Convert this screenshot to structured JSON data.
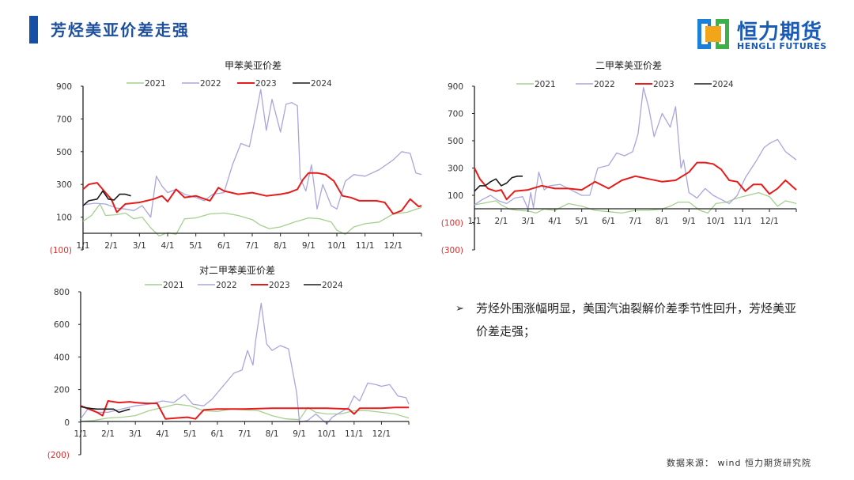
{
  "header": {
    "title": "芳烃美亚价差走强",
    "accent_color": "#1650a6"
  },
  "logo": {
    "name_cn": "恒力期货",
    "name_en": "HENGLI FUTURES"
  },
  "bullet": {
    "marker": "➢",
    "text": "芳烃外围涨幅明显，美国汽油裂解价差季节性回升，芳烃美亚价差走强；"
  },
  "source": {
    "label": "数据来源：",
    "value": "wind 恒力期货研究院"
  },
  "series_colors": {
    "2021": "#a6cf8f",
    "2022": "#a9a6dc",
    "2023": "#e51c1c",
    "2024": "#1a1a1a"
  },
  "chart_data": [
    {
      "id": "toluene",
      "type": "line",
      "title": "甲苯美亚价差",
      "xlabel": "",
      "ylabel": "",
      "categories": [
        "1/1",
        "2/1",
        "3/1",
        "4/1",
        "5/1",
        "6/1",
        "7/1",
        "8/1",
        "9/1",
        "10/1",
        "11/1",
        "12/1"
      ],
      "y_ticks": [
        "900",
        "700",
        "500",
        "300",
        "100",
        "(100)"
      ],
      "ylim": [
        -100,
        900
      ],
      "legend": [
        "2021",
        "2022",
        "2023",
        "2024"
      ],
      "legend_position": "top",
      "grid": false,
      "x_unit": "month index (0 = 1/1, 12 = year end)",
      "series": [
        {
          "name": "2021",
          "x": [
            0,
            0.3,
            0.6,
            0.8,
            1.2,
            1.5,
            1.8,
            2.1,
            2.4,
            2.7,
            3.0,
            3.3,
            3.6,
            4.0,
            4.5,
            5.0,
            5.5,
            6.0,
            6.3,
            6.6,
            7.0,
            7.5,
            8.0,
            8.4,
            8.8,
            9.0,
            9.3,
            9.6,
            10.0,
            10.5,
            11.0,
            11.5,
            12.0
          ],
          "values": [
            75,
            110,
            180,
            110,
            115,
            125,
            90,
            100,
            35,
            -15,
            5,
            -5,
            90,
            95,
            120,
            125,
            110,
            85,
            50,
            30,
            40,
            70,
            95,
            90,
            70,
            20,
            -5,
            40,
            60,
            70,
            120,
            130,
            160
          ]
        },
        {
          "name": "2022",
          "x": [
            0,
            0.4,
            0.8,
            1.2,
            1.5,
            1.8,
            2.1,
            2.4,
            2.6,
            2.8,
            3.0,
            3.3,
            3.6,
            4.0,
            4.3,
            4.6,
            5.0,
            5.3,
            5.6,
            5.9,
            6.1,
            6.3,
            6.5,
            6.7,
            7.0,
            7.2,
            7.4,
            7.6,
            7.7,
            7.9,
            8.1,
            8.3,
            8.5,
            8.8,
            9.0,
            9.3,
            9.6,
            10.0,
            10.5,
            11.0,
            11.3,
            11.6,
            11.8,
            12.0
          ],
          "values": [
            175,
            185,
            180,
            155,
            150,
            140,
            170,
            100,
            350,
            290,
            250,
            270,
            240,
            220,
            200,
            240,
            250,
            420,
            550,
            530,
            700,
            880,
            630,
            820,
            620,
            790,
            800,
            780,
            340,
            260,
            420,
            150,
            300,
            170,
            150,
            320,
            360,
            350,
            390,
            450,
            500,
            490,
            370,
            360
          ]
        },
        {
          "name": "2023",
          "x": [
            0,
            0.2,
            0.5,
            0.8,
            1.0,
            1.2,
            1.5,
            2.0,
            2.5,
            2.8,
            3.0,
            3.3,
            3.6,
            4.0,
            4.5,
            4.8,
            5.0,
            5.5,
            6.0,
            6.5,
            7.0,
            7.3,
            7.6,
            7.8,
            8.0,
            8.3,
            8.6,
            8.9,
            9.2,
            9.5,
            9.8,
            10.1,
            10.4,
            10.7,
            11.0,
            11.3,
            11.6,
            11.9,
            12.0
          ],
          "values": [
            270,
            300,
            310,
            250,
            210,
            130,
            180,
            190,
            210,
            230,
            195,
            270,
            220,
            230,
            200,
            280,
            260,
            240,
            250,
            230,
            240,
            250,
            270,
            330,
            370,
            370,
            360,
            320,
            230,
            220,
            200,
            200,
            200,
            190,
            120,
            140,
            210,
            165,
            170
          ]
        },
        {
          "name": "2024",
          "x": [
            0,
            0.2,
            0.5,
            0.7,
            0.9,
            1.1,
            1.3,
            1.5,
            1.7
          ],
          "values": [
            170,
            200,
            210,
            260,
            210,
            205,
            240,
            240,
            230
          ]
        }
      ]
    },
    {
      "id": "xylene",
      "type": "line",
      "title": "二甲苯美亚价差",
      "xlabel": "",
      "ylabel": "",
      "categories": [
        "1/1",
        "2/1",
        "3/1",
        "4/1",
        "5/1",
        "6/1",
        "7/1",
        "8/1",
        "9/1",
        "10/1",
        "11/1",
        "12/1"
      ],
      "y_ticks": [
        "900",
        "700",
        "500",
        "300",
        "100",
        "(100)",
        "(300)"
      ],
      "ylim": [
        -300,
        900
      ],
      "legend": [
        "2021",
        "2022",
        "2023",
        "2024"
      ],
      "legend_position": "top",
      "grid": false,
      "x_unit": "month index (0 = 1/1, 12 = year end)",
      "series": [
        {
          "name": "2021",
          "x": [
            0,
            0.4,
            0.8,
            1.0,
            1.3,
            1.6,
            2.0,
            2.3,
            2.6,
            3.0,
            3.5,
            4.0,
            4.5,
            5.0,
            5.5,
            6.0,
            6.5,
            7.0,
            7.3,
            7.6,
            8.0,
            8.4,
            8.7,
            9.0,
            9.4,
            9.8,
            10.2,
            10.6,
            11.0,
            11.3,
            11.6,
            12.0
          ],
          "values": [
            30,
            45,
            60,
            30,
            0,
            -10,
            -15,
            -30,
            0,
            -10,
            40,
            20,
            -10,
            -20,
            -30,
            -10,
            -10,
            0,
            20,
            50,
            50,
            -10,
            -30,
            40,
            50,
            80,
            100,
            120,
            90,
            20,
            60,
            40
          ]
        },
        {
          "name": "2022",
          "x": [
            0,
            0.3,
            0.6,
            0.9,
            1.2,
            1.5,
            1.8,
            2.0,
            2.1,
            2.2,
            2.4,
            2.6,
            2.8,
            3.2,
            3.5,
            4.0,
            4.3,
            4.6,
            5.0,
            5.3,
            5.6,
            5.9,
            6.1,
            6.3,
            6.5,
            6.7,
            7.0,
            7.3,
            7.5,
            7.7,
            7.8,
            8.0,
            8.3,
            8.6,
            8.9,
            9.2,
            9.5,
            9.8,
            10.1,
            10.5,
            10.8,
            11.0,
            11.3,
            11.6,
            12.0
          ],
          "values": [
            30,
            70,
            100,
            60,
            40,
            80,
            90,
            0,
            120,
            10,
            270,
            140,
            170,
            180,
            150,
            100,
            100,
            300,
            320,
            410,
            390,
            420,
            550,
            890,
            740,
            530,
            700,
            600,
            750,
            300,
            360,
            120,
            80,
            150,
            100,
            70,
            40,
            100,
            230,
            350,
            450,
            480,
            510,
            420,
            360
          ]
        },
        {
          "name": "2023",
          "x": [
            0,
            0.2,
            0.5,
            0.8,
            1.0,
            1.2,
            1.5,
            2.0,
            2.5,
            3.0,
            3.5,
            4.0,
            4.5,
            5.0,
            5.5,
            6.0,
            6.5,
            7.0,
            7.5,
            8.0,
            8.3,
            8.6,
            8.9,
            9.2,
            9.5,
            9.8,
            10.1,
            10.4,
            10.7,
            11.0,
            11.3,
            11.6,
            12.0
          ],
          "values": [
            300,
            220,
            150,
            130,
            140,
            70,
            130,
            140,
            170,
            150,
            150,
            140,
            200,
            150,
            210,
            240,
            220,
            200,
            210,
            270,
            340,
            340,
            330,
            290,
            210,
            200,
            130,
            180,
            180,
            110,
            150,
            210,
            140
          ]
        },
        {
          "name": "2024",
          "x": [
            0,
            0.2,
            0.4,
            0.6,
            0.8,
            1.0,
            1.2,
            1.4,
            1.6,
            1.8
          ],
          "values": [
            130,
            170,
            170,
            200,
            220,
            170,
            190,
            230,
            240,
            240
          ]
        }
      ]
    },
    {
      "id": "paraxylene",
      "type": "line",
      "title": "对二甲苯美亚价差",
      "xlabel": "",
      "ylabel": "",
      "categories": [
        "1/1",
        "2/1",
        "3/1",
        "4/1",
        "5/1",
        "6/1",
        "7/1",
        "8/1",
        "9/1",
        "10/1",
        "11/1",
        "12/1"
      ],
      "y_ticks": [
        "800",
        "600",
        "400",
        "200",
        "0",
        "(200)"
      ],
      "ylim": [
        -200,
        800
      ],
      "legend": [
        "2021",
        "2022",
        "2023",
        "2024"
      ],
      "legend_position": "top",
      "grid": false,
      "x_unit": "month index (0 = 1/1, 12 = year end)",
      "series": [
        {
          "name": "2021",
          "x": [
            0,
            0.5,
            1.0,
            1.5,
            2.0,
            2.5,
            3.0,
            3.5,
            4.0,
            4.5,
            5.0,
            5.5,
            6.0,
            6.5,
            7.0,
            7.5,
            8.0,
            8.3,
            8.6,
            9.0,
            9.5,
            10.0,
            10.5,
            11.0,
            11.5,
            12.0
          ],
          "values": [
            5,
            10,
            25,
            30,
            40,
            70,
            90,
            110,
            100,
            70,
            65,
            80,
            75,
            70,
            40,
            20,
            15,
            90,
            60,
            50,
            50,
            70,
            70,
            60,
            50,
            25
          ]
        },
        {
          "name": "2022",
          "x": [
            0,
            0.3,
            0.6,
            1.0,
            1.5,
            2.0,
            2.5,
            3.0,
            3.4,
            3.8,
            4.1,
            4.5,
            4.8,
            5.2,
            5.6,
            5.9,
            6.1,
            6.3,
            6.4,
            6.6,
            6.8,
            7.0,
            7.3,
            7.6,
            7.9,
            8.0,
            8.3,
            8.6,
            9.0,
            9.2,
            9.5,
            9.8,
            10.0,
            10.2,
            10.5,
            10.8,
            11.0,
            11.3,
            11.6,
            11.9,
            12.0
          ],
          "values": [
            20,
            90,
            60,
            60,
            80,
            100,
            110,
            130,
            120,
            170,
            110,
            100,
            140,
            220,
            300,
            320,
            440,
            350,
            500,
            730,
            480,
            440,
            470,
            450,
            180,
            0,
            10,
            50,
            -10,
            30,
            60,
            90,
            160,
            130,
            240,
            230,
            220,
            230,
            160,
            150,
            110
          ]
        },
        {
          "name": "2023",
          "x": [
            0,
            0.3,
            0.6,
            0.8,
            1.0,
            1.4,
            1.8,
            2.0,
            2.4,
            2.8,
            3.1,
            3.5,
            3.9,
            4.2,
            4.5,
            5.0,
            6.0,
            7.0,
            8.0,
            9.0,
            9.8,
            10.0,
            10.2,
            10.6,
            11.0,
            11.5,
            12.0
          ],
          "values": [
            100,
            80,
            60,
            40,
            130,
            120,
            125,
            120,
            115,
            115,
            20,
            25,
            30,
            20,
            75,
            80,
            80,
            85,
            85,
            85,
            80,
            50,
            85,
            85,
            85,
            90,
            90
          ]
        },
        {
          "name": "2024",
          "x": [
            0,
            0.3,
            0.6,
            0.9,
            1.2,
            1.4,
            1.6,
            1.8
          ],
          "values": [
            95,
            85,
            80,
            80,
            80,
            60,
            70,
            80
          ]
        }
      ]
    }
  ]
}
